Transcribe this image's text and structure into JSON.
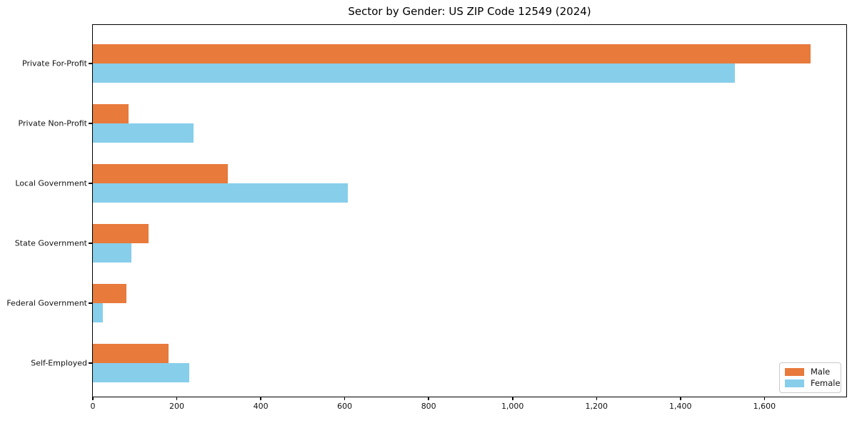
{
  "chart_data": {
    "type": "bar",
    "orientation": "horizontal",
    "title": "Sector by Gender: US ZIP Code 12549 (2024)",
    "categories": [
      "Private For-Profit",
      "Private Non-Profit",
      "Local Government",
      "State Government",
      "Federal Government",
      "Self-Employed"
    ],
    "series": [
      {
        "name": "Male",
        "color": "#E87A3C",
        "values": [
          1710,
          85,
          322,
          132,
          80,
          180
        ]
      },
      {
        "name": "Female",
        "color": "#87CEEB",
        "values": [
          1530,
          240,
          608,
          92,
          24,
          230
        ]
      }
    ],
    "xlabel": "",
    "ylabel": "",
    "xlim": [
      0,
      1795
    ],
    "xticks": [
      0,
      200,
      400,
      600,
      800,
      1000,
      1200,
      1400,
      1600
    ],
    "xtick_labels": [
      "0",
      "200",
      "400",
      "600",
      "800",
      "1,000",
      "1,200",
      "1,400",
      "1,600"
    ],
    "grid": false,
    "background": "#ffffff",
    "legend": {
      "position": "lower right",
      "entries": [
        "Male",
        "Female"
      ]
    }
  }
}
